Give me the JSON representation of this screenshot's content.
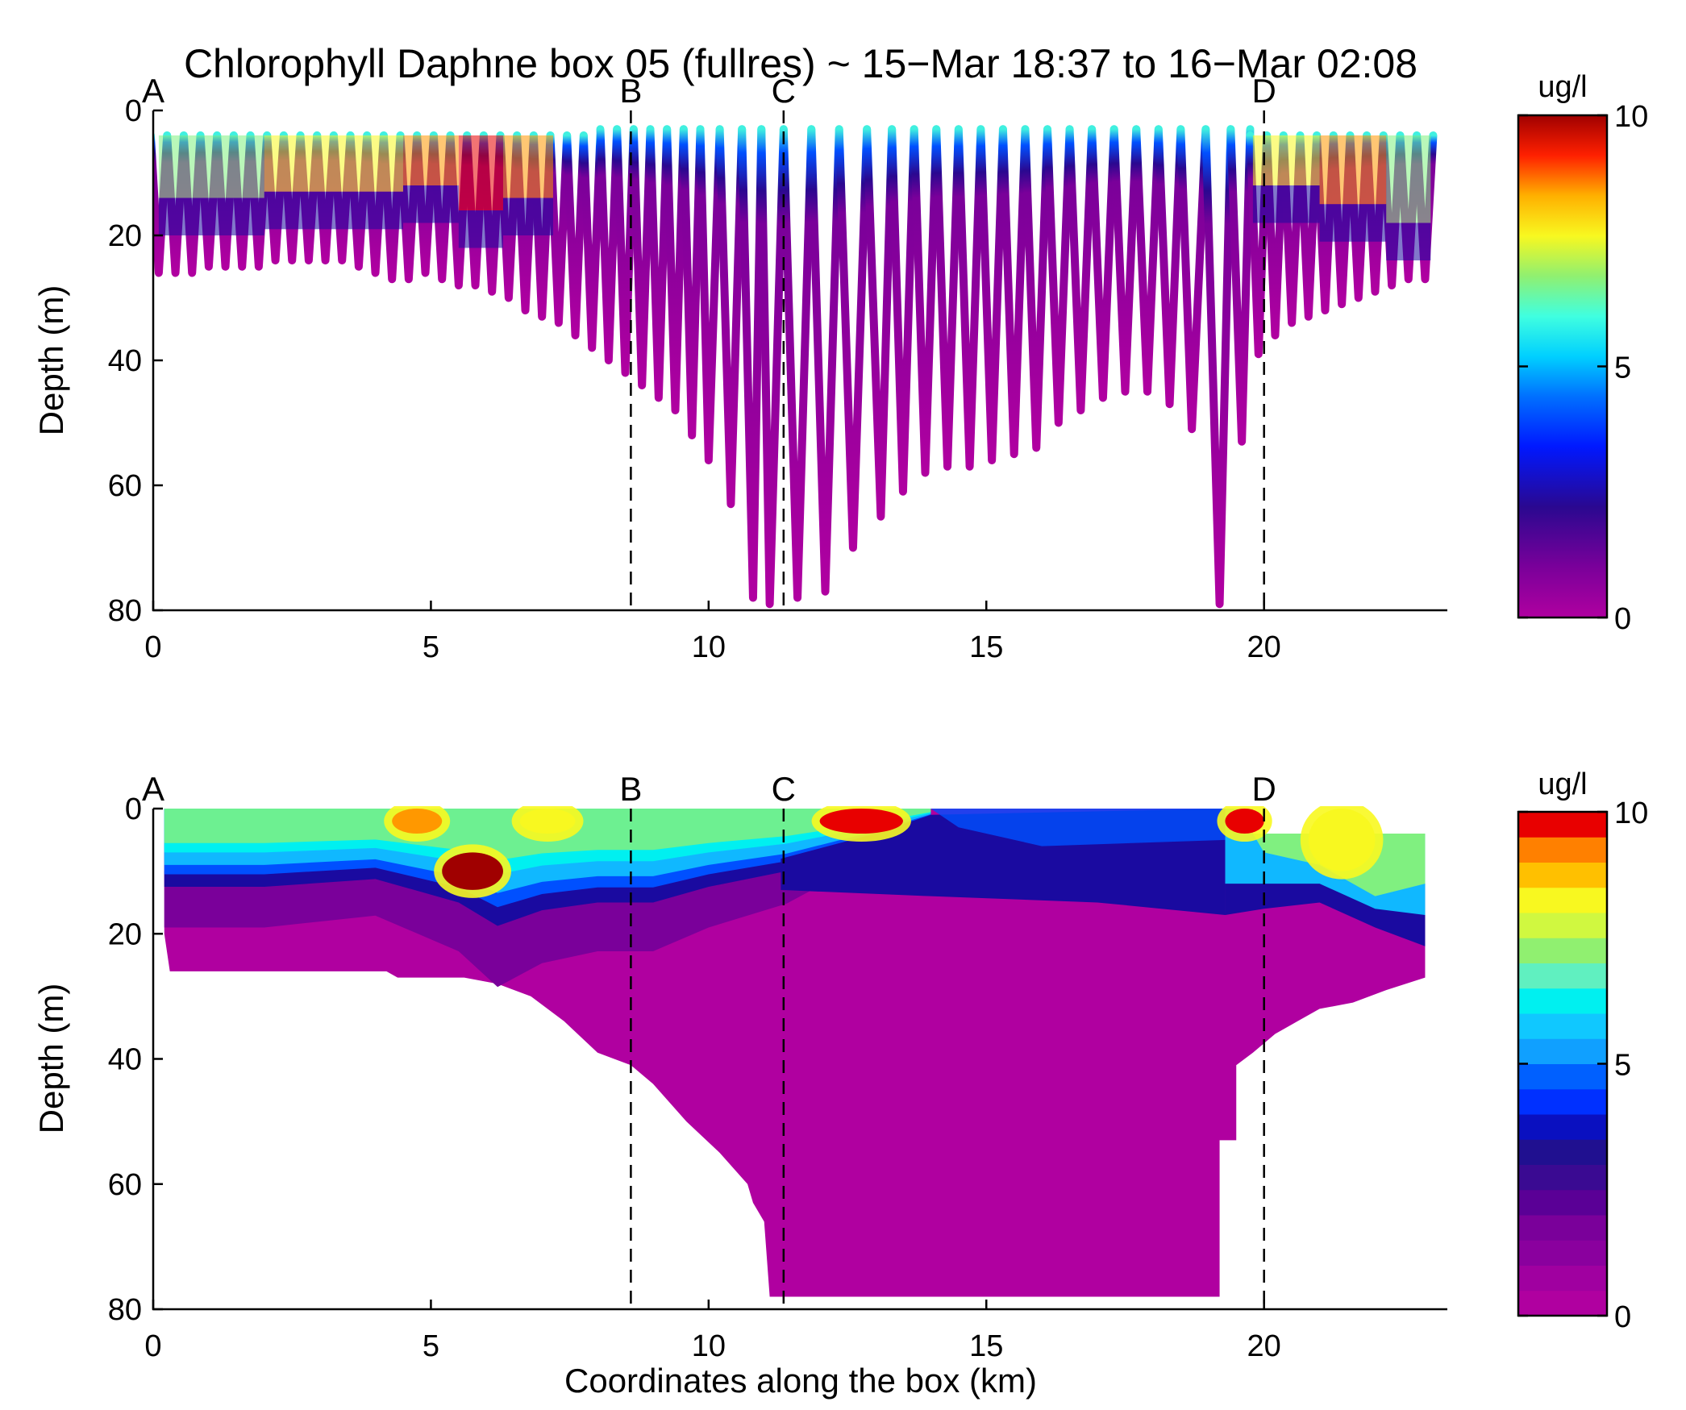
{
  "chart_data": {
    "title": "Chlorophyll Daphne box 05 (fullres) ~ 15−Mar 18:37 to 16−Mar 02:08",
    "xlabel": "Coordinates along the box (km)",
    "colors": {
      "bottom": "#b000a0",
      "low": "#7a009a",
      "deep_blue": "#1a0aa0",
      "blue": "#0050ff",
      "light_blue": "#10b8ff",
      "cyan": "#00f0f0",
      "green": "#80f080",
      "yellow": "#f8f820",
      "orange": "#ff9800",
      "red": "#e80000",
      "dark_red": "#a00000"
    },
    "panels": [
      {
        "name": "raw",
        "type": "scatter",
        "ylabel": "Depth (m)",
        "xlim": [
          0,
          23.3
        ],
        "ylim": [
          0,
          80
        ],
        "y_inverted": true,
        "xticks": [
          0,
          5,
          10,
          15,
          20
        ],
        "yticks": [
          0,
          20,
          40,
          60,
          80
        ],
        "section_markers": [
          {
            "label": "A",
            "x": 0
          },
          {
            "label": "B",
            "x": 8.6
          },
          {
            "label": "C",
            "x": 11.35
          },
          {
            "label": "D",
            "x": 20
          }
        ],
        "colorbar": {
          "label": "ug/l",
          "min": 0,
          "max": 10,
          "ticks": [
            0,
            5,
            10
          ],
          "levels": "continuous"
        },
        "profiles": [
          {
            "x": 0.1,
            "max_depth": 26
          },
          {
            "x": 0.4,
            "max_depth": 26
          },
          {
            "x": 0.7,
            "max_depth": 26
          },
          {
            "x": 1.0,
            "max_depth": 25
          },
          {
            "x": 1.3,
            "max_depth": 25
          },
          {
            "x": 1.6,
            "max_depth": 25
          },
          {
            "x": 1.9,
            "max_depth": 25
          },
          {
            "x": 2.2,
            "max_depth": 24
          },
          {
            "x": 2.5,
            "max_depth": 24
          },
          {
            "x": 2.8,
            "max_depth": 24
          },
          {
            "x": 3.1,
            "max_depth": 24
          },
          {
            "x": 3.4,
            "max_depth": 24
          },
          {
            "x": 3.7,
            "max_depth": 25
          },
          {
            "x": 4.0,
            "max_depth": 26
          },
          {
            "x": 4.3,
            "max_depth": 27
          },
          {
            "x": 4.6,
            "max_depth": 27
          },
          {
            "x": 4.9,
            "max_depth": 26
          },
          {
            "x": 5.2,
            "max_depth": 27
          },
          {
            "x": 5.5,
            "max_depth": 28
          },
          {
            "x": 5.8,
            "max_depth": 28
          },
          {
            "x": 6.1,
            "max_depth": 29
          },
          {
            "x": 6.4,
            "max_depth": 30
          },
          {
            "x": 6.7,
            "max_depth": 32
          },
          {
            "x": 7.0,
            "max_depth": 33
          },
          {
            "x": 7.3,
            "max_depth": 34
          },
          {
            "x": 7.6,
            "max_depth": 36
          },
          {
            "x": 7.9,
            "max_depth": 38
          },
          {
            "x": 8.2,
            "max_depth": 40
          },
          {
            "x": 8.5,
            "max_depth": 42
          },
          {
            "x": 8.8,
            "max_depth": 44
          },
          {
            "x": 9.1,
            "max_depth": 46
          },
          {
            "x": 9.4,
            "max_depth": 48
          },
          {
            "x": 9.7,
            "max_depth": 52
          },
          {
            "x": 10.0,
            "max_depth": 56
          },
          {
            "x": 10.4,
            "max_depth": 63
          },
          {
            "x": 10.8,
            "max_depth": 78
          },
          {
            "x": 11.1,
            "max_depth": 79
          },
          {
            "x": 11.6,
            "max_depth": 78
          },
          {
            "x": 12.1,
            "max_depth": 77
          },
          {
            "x": 12.6,
            "max_depth": 70
          },
          {
            "x": 13.1,
            "max_depth": 65
          },
          {
            "x": 13.5,
            "max_depth": 61
          },
          {
            "x": 13.9,
            "max_depth": 58
          },
          {
            "x": 14.3,
            "max_depth": 57
          },
          {
            "x": 14.7,
            "max_depth": 57
          },
          {
            "x": 15.1,
            "max_depth": 56
          },
          {
            "x": 15.5,
            "max_depth": 55
          },
          {
            "x": 15.9,
            "max_depth": 54
          },
          {
            "x": 16.3,
            "max_depth": 50
          },
          {
            "x": 16.7,
            "max_depth": 48
          },
          {
            "x": 17.1,
            "max_depth": 46
          },
          {
            "x": 17.5,
            "max_depth": 45
          },
          {
            "x": 17.9,
            "max_depth": 45
          },
          {
            "x": 18.3,
            "max_depth": 47
          },
          {
            "x": 18.7,
            "max_depth": 51
          },
          {
            "x": 19.2,
            "max_depth": 79
          },
          {
            "x": 19.6,
            "max_depth": 53
          },
          {
            "x": 19.9,
            "max_depth": 39
          },
          {
            "x": 20.2,
            "max_depth": 36
          },
          {
            "x": 20.5,
            "max_depth": 34
          },
          {
            "x": 20.8,
            "max_depth": 33
          },
          {
            "x": 21.1,
            "max_depth": 32
          },
          {
            "x": 21.4,
            "max_depth": 31
          },
          {
            "x": 21.7,
            "max_depth": 30
          },
          {
            "x": 22.0,
            "max_depth": 29
          },
          {
            "x": 22.3,
            "max_depth": 28
          },
          {
            "x": 22.6,
            "max_depth": 27
          },
          {
            "x": 22.9,
            "max_depth": 27
          }
        ]
      },
      {
        "name": "interpolated",
        "type": "heatmap",
        "ylabel": "Depth (m)",
        "xlim": [
          0,
          23.3
        ],
        "ylim": [
          0,
          80
        ],
        "y_inverted": true,
        "xticks": [
          0,
          5,
          10,
          15,
          20
        ],
        "yticks": [
          0,
          20,
          40,
          60,
          80
        ],
        "section_markers": [
          {
            "label": "A",
            "x": 0
          },
          {
            "label": "B",
            "x": 8.6
          },
          {
            "label": "C",
            "x": 11.35
          },
          {
            "label": "D",
            "x": 20
          }
        ],
        "colorbar": {
          "label": "ug/l",
          "min": 0,
          "max": 10,
          "ticks": [
            0,
            5,
            10
          ],
          "levels": 20
        },
        "bottom_outline": [
          [
            0.2,
            20
          ],
          [
            0.3,
            26
          ],
          [
            4.2,
            26
          ],
          [
            4.4,
            27
          ],
          [
            5.6,
            27
          ],
          [
            6.2,
            28
          ],
          [
            6.8,
            30
          ],
          [
            7.4,
            34
          ],
          [
            8.0,
            39
          ],
          [
            8.6,
            41
          ],
          [
            9.0,
            44
          ],
          [
            9.6,
            50
          ],
          [
            10.2,
            55
          ],
          [
            10.5,
            58
          ],
          [
            10.7,
            60
          ],
          [
            10.8,
            63
          ],
          [
            11.0,
            66
          ],
          [
            11.1,
            78
          ],
          [
            19.2,
            78
          ],
          [
            19.2,
            53
          ],
          [
            19.5,
            53
          ],
          [
            19.5,
            41
          ],
          [
            19.8,
            39
          ],
          [
            20.2,
            36
          ],
          [
            20.6,
            34
          ],
          [
            21.0,
            32
          ],
          [
            21.6,
            31
          ],
          [
            22.2,
            29
          ],
          [
            22.9,
            27
          ],
          [
            22.9,
            4
          ],
          [
            19.8,
            4
          ],
          [
            19.6,
            0
          ],
          [
            0.2,
            0
          ]
        ],
        "chlorophyll_max_layer": [
          {
            "x": 0.2,
            "top": 0,
            "bottom": 10
          },
          {
            "x": 2.0,
            "top": 0,
            "bottom": 10
          },
          {
            "x": 4.0,
            "top": 0,
            "bottom": 9
          },
          {
            "x": 5.5,
            "top": 0,
            "bottom": 12
          },
          {
            "x": 6.2,
            "top": 0,
            "bottom": 15
          },
          {
            "x": 7.0,
            "top": 0,
            "bottom": 13
          },
          {
            "x": 8.0,
            "top": 0,
            "bottom": 12
          },
          {
            "x": 9.0,
            "top": 0,
            "bottom": 12
          },
          {
            "x": 10.0,
            "top": 0,
            "bottom": 10
          },
          {
            "x": 11.4,
            "top": 0,
            "bottom": 8
          },
          {
            "x": 13.0,
            "top": 0,
            "bottom": 4
          },
          {
            "x": 14.0,
            "top": 0,
            "bottom": 1
          }
        ],
        "surface_patches": [
          {
            "x_start": 4.3,
            "x_end": 5.2,
            "value": 8.5
          },
          {
            "x_start": 5.2,
            "x_end": 6.3,
            "value": 10
          },
          {
            "x_start": 6.6,
            "x_end": 7.6,
            "value": 8
          },
          {
            "x_start": 12.0,
            "x_end": 13.5,
            "value": 9
          },
          {
            "x_start": 19.3,
            "x_end": 20.0,
            "value": 9
          },
          {
            "x_start": 20.8,
            "x_end": 22.0,
            "value": 8
          }
        ]
      }
    ]
  }
}
